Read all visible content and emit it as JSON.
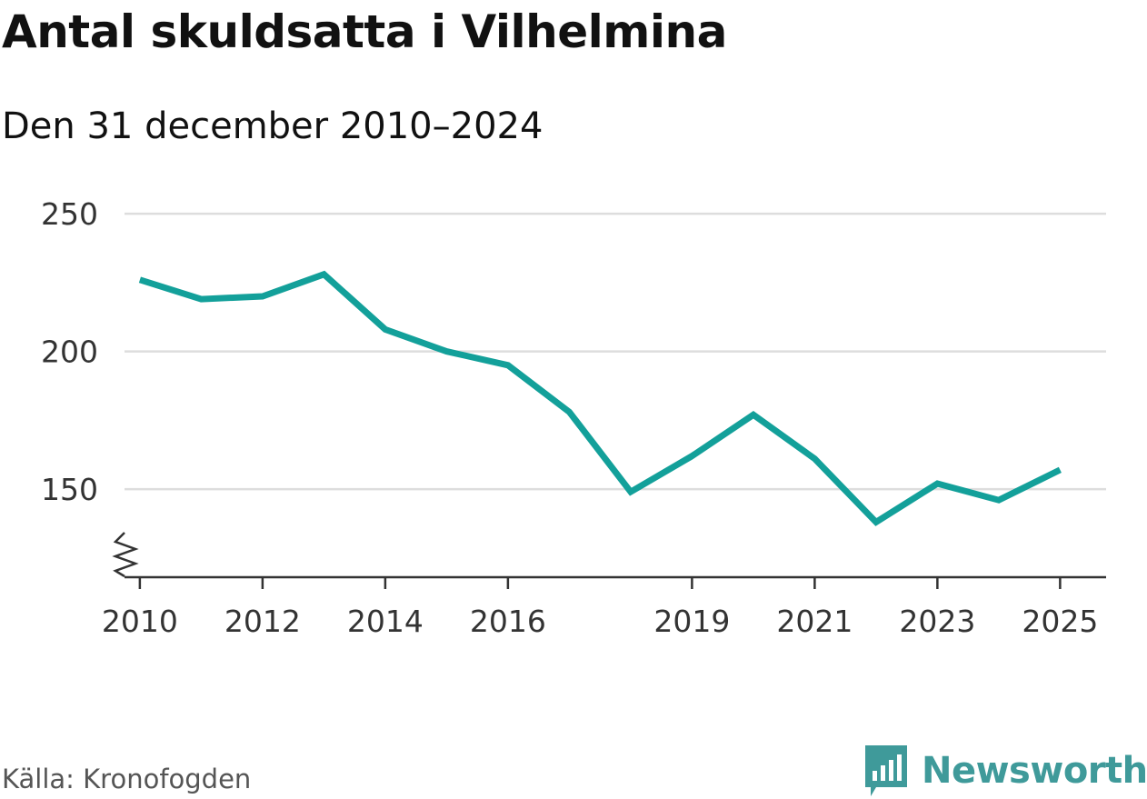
{
  "title": "Antal skuldsatta i Vilhelmina",
  "subtitle": "Den 31 december 2010–2024",
  "source": "Källa: Kronofogden",
  "brand": {
    "name": "Newsworthy",
    "logo_icon": "newsworthy-logo-icon",
    "color": "#3f9a9a"
  },
  "colors": {
    "line": "#13a09a",
    "grid": "#dddddd",
    "axis": "#333333"
  },
  "chart_data": {
    "type": "line",
    "title": "Antal skuldsatta i Vilhelmina",
    "subtitle": "Den 31 december 2010–2024",
    "xlabel": "",
    "ylabel": "",
    "x": [
      2010,
      2011,
      2012,
      2013,
      2014,
      2015,
      2016,
      2017,
      2018,
      2019,
      2020,
      2021,
      2022,
      2023,
      2024,
      2025
    ],
    "series": [
      {
        "name": "Antal skuldsatta",
        "values": [
          226,
          219,
          220,
          228,
          208,
          200,
          195,
          178,
          149,
          162,
          177,
          161,
          138,
          152,
          146,
          157
        ]
      }
    ],
    "xlim": [
      2009.75,
      2025.75
    ],
    "ylim": [
      118,
      255
    ],
    "yticks": [
      150,
      200,
      250
    ],
    "xticks": [
      2010,
      2012,
      2014,
      2016,
      2019,
      2021,
      2023,
      2025
    ],
    "xtick_labels": [
      "2010",
      "2012",
      "2014",
      "2016",
      "2019",
      "2021",
      "2023",
      "2025"
    ],
    "ytick_labels": [
      "150",
      "200",
      "250"
    ],
    "axis_break": true,
    "grid": "horizontal",
    "legend": "none"
  }
}
